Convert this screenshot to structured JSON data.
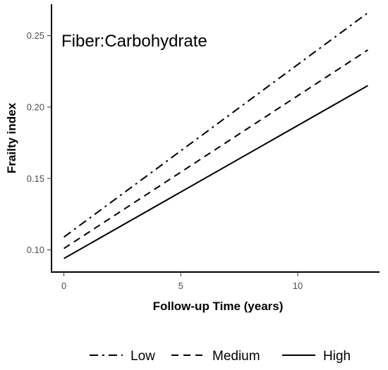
{
  "chart_data": {
    "type": "line",
    "title": "Fiber:Carbohydrate",
    "xlabel": "Follow-up Time (years)",
    "ylabel": "Frailty index",
    "xlim": [
      -0.5,
      13.5
    ],
    "ylim": [
      0.085,
      0.272
    ],
    "x_ticks": [
      0,
      5,
      10
    ],
    "y_ticks": [
      0.1,
      0.15,
      0.2,
      0.25
    ],
    "x_tick_labels": [
      "0",
      "5",
      "10"
    ],
    "y_tick_labels": [
      "0.10",
      "0.15",
      "0.20",
      "0.25"
    ],
    "grid": false,
    "legend_position": "bottom",
    "series": [
      {
        "name": "Low",
        "linestyle": "dashdot",
        "x": [
          0,
          13
        ],
        "y": [
          0.109,
          0.266
        ]
      },
      {
        "name": "Medium",
        "linestyle": "dashed",
        "x": [
          0,
          13
        ],
        "y": [
          0.101,
          0.24
        ]
      },
      {
        "name": "High",
        "linestyle": "solid",
        "x": [
          0,
          13
        ],
        "y": [
          0.094,
          0.215
        ]
      }
    ],
    "line_color": "#000000"
  }
}
